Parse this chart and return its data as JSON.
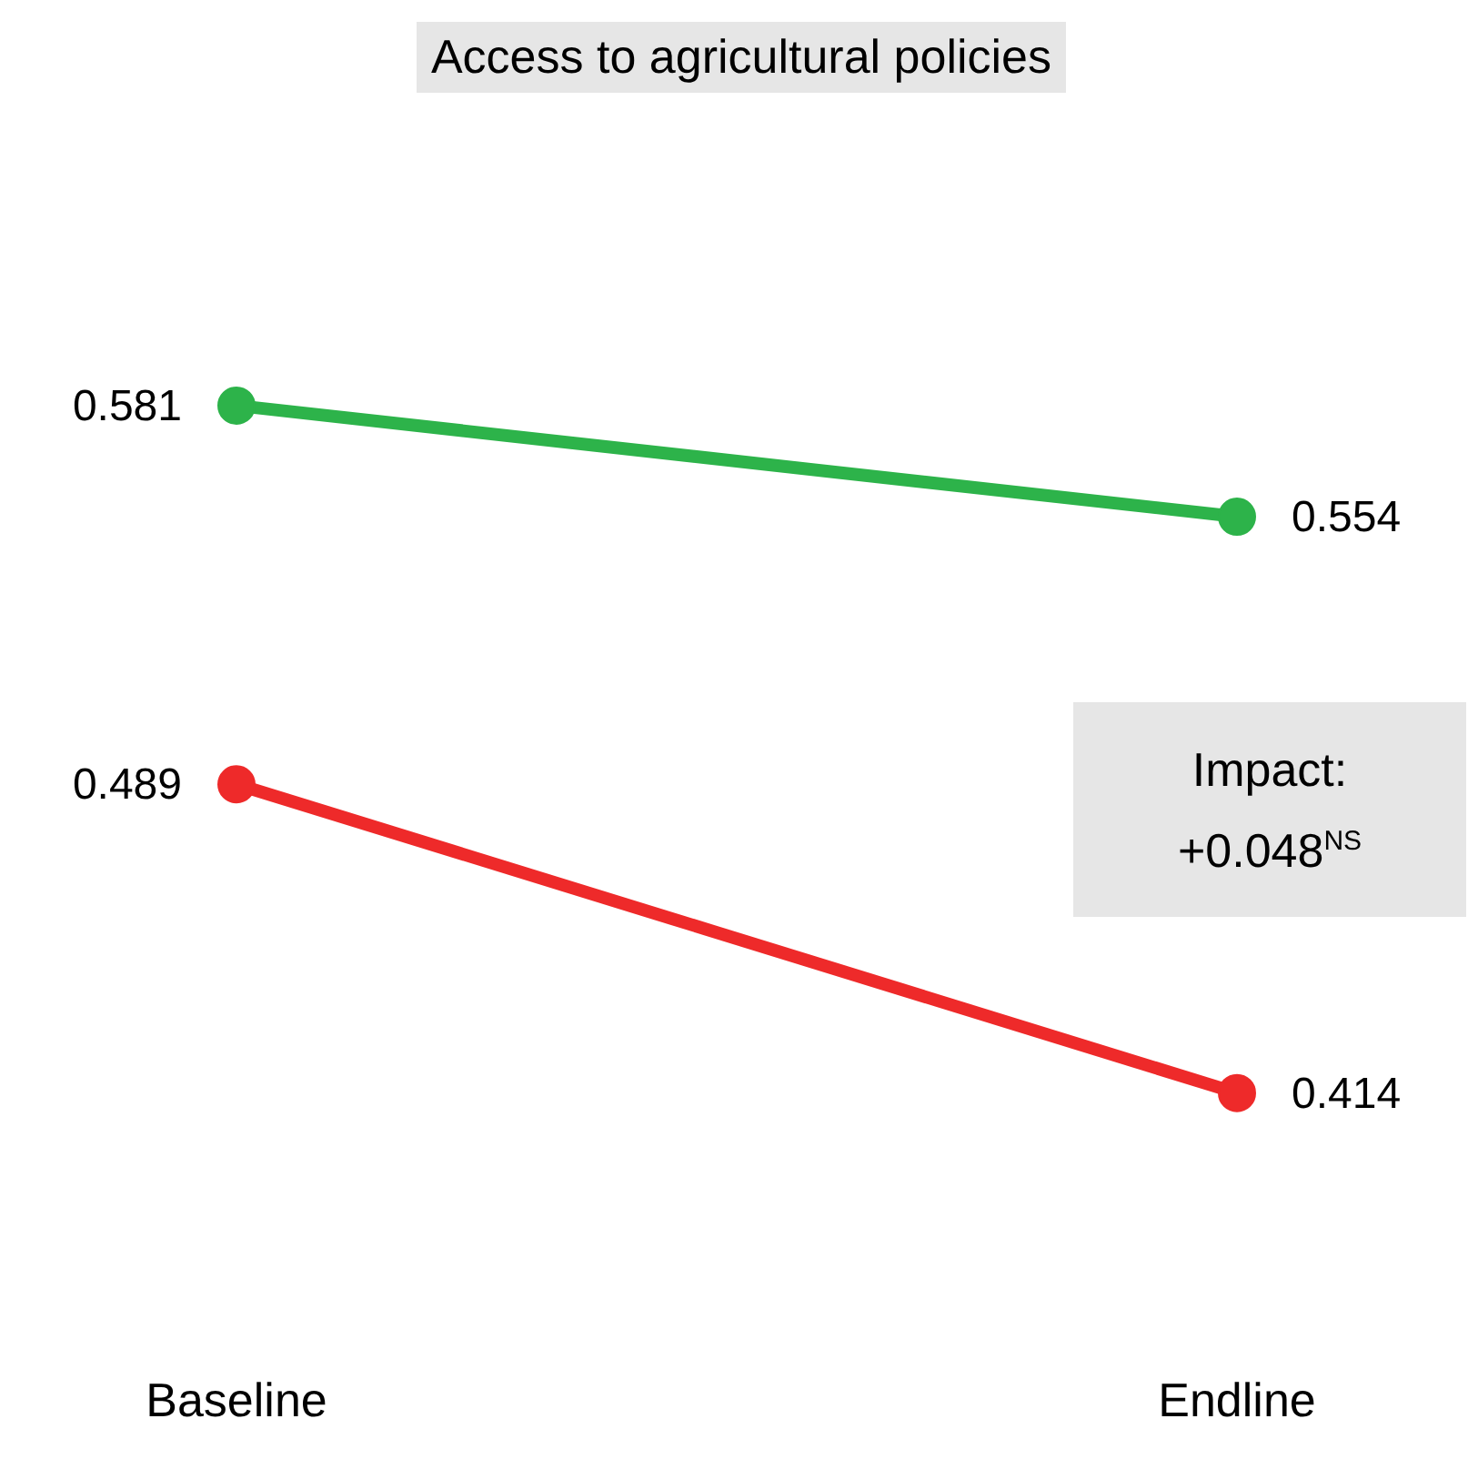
{
  "chart_data": {
    "type": "line",
    "title": "Access to agricultural policies",
    "categories": [
      "Baseline",
      "Endline"
    ],
    "series": [
      {
        "color": "#2db34a",
        "values": [
          0.581,
          0.554
        ]
      },
      {
        "color": "#ee2a2a",
        "values": [
          0.489,
          0.414
        ]
      }
    ],
    "data_labels": true,
    "marker": "circle",
    "annotations": [
      "Impact: +0.048$^{NS}$"
    ]
  }
}
